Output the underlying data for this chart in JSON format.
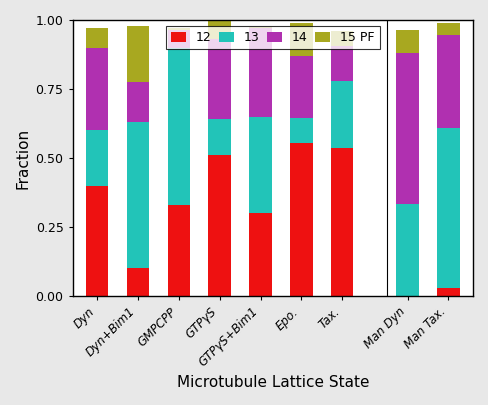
{
  "categories": [
    "Dyn",
    "Dyn+Bim1",
    "GMPCPP",
    "GTPγS",
    "GTPγS+Bim1",
    "Epo.",
    "Tax.",
    "Man Dyn",
    "Man Tax."
  ],
  "pf12": [
    0.4,
    0.1,
    0.33,
    0.51,
    0.3,
    0.555,
    0.535,
    0.0,
    0.03
  ],
  "pf13": [
    0.2,
    0.53,
    0.57,
    0.13,
    0.35,
    0.09,
    0.245,
    0.335,
    0.58
  ],
  "pf14": [
    0.3,
    0.145,
    0.065,
    0.29,
    0.32,
    0.225,
    0.125,
    0.545,
    0.335
  ],
  "pf15": [
    0.07,
    0.205,
    0.005,
    0.065,
    0.005,
    0.12,
    0.055,
    0.085,
    0.045
  ],
  "colors": [
    "#ee1111",
    "#22c4b8",
    "#b030b0",
    "#a8a820"
  ],
  "legend_labels": [
    "12",
    "13",
    "14",
    "15 PF"
  ],
  "xlabel": "Microtubule Lattice State",
  "ylabel": "Fraction",
  "ylim": [
    0.0,
    1.0
  ],
  "yticks": [
    0.0,
    0.25,
    0.5,
    0.75,
    1.0
  ],
  "bar_width": 0.55,
  "figsize": [
    4.88,
    4.05
  ],
  "dpi": 100,
  "background_color": "#e8e8e8"
}
